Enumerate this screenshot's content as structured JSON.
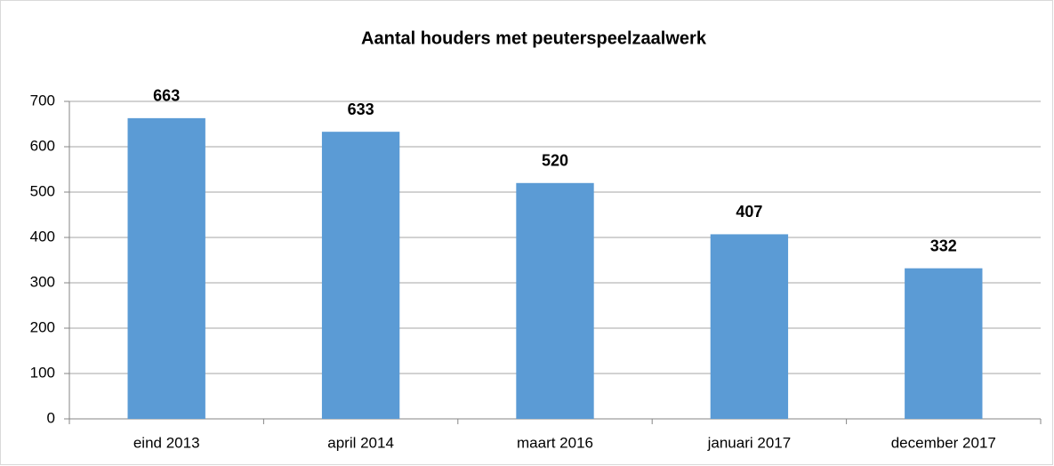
{
  "chart_data": {
    "type": "bar",
    "title": "Aantal houders met peuterspeelzaalwerk",
    "categories": [
      "eind 2013",
      "april 2014",
      "maart 2016",
      "januari 2017",
      "december 2017"
    ],
    "values": [
      663,
      633,
      520,
      407,
      332
    ],
    "color": "#5b9bd5",
    "ylim": [
      0,
      700
    ],
    "yticks": [
      0,
      100,
      200,
      300,
      400,
      500,
      600,
      700
    ],
    "grid": true
  }
}
